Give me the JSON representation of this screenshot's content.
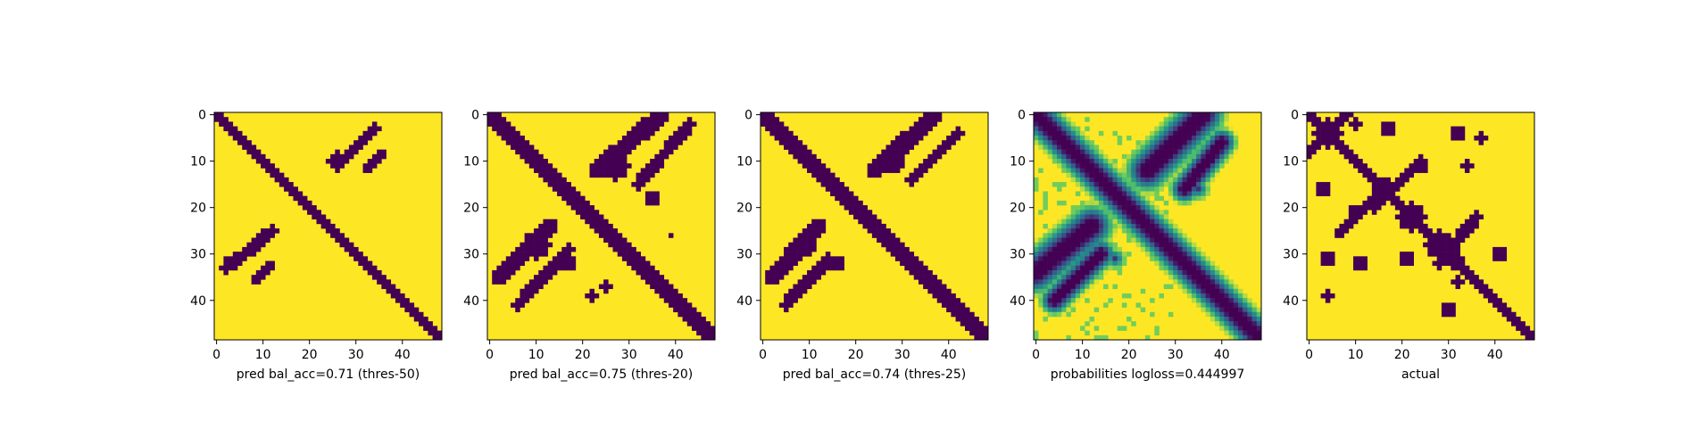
{
  "colors": {
    "background_yellow": "#fde725",
    "foreground_purple": "#440154",
    "viridis_scale": [
      "#440154",
      "#3b528b",
      "#21918c",
      "#5ec962",
      "#fde725"
    ]
  },
  "chart_data": [
    {
      "type": "heatmap",
      "xlabel": "pred bal_acc=0.71 (thres-50)",
      "ylabel": "",
      "xlim": [
        0,
        48
      ],
      "ylim": [
        0,
        48
      ],
      "x_ticks": [
        "0",
        "10",
        "20",
        "30",
        "40"
      ],
      "y_ticks": [
        "0",
        "10",
        "20",
        "30",
        "40"
      ],
      "grid": false,
      "bands": [
        {
          "x0": 0,
          "y0": 0,
          "x1": 48,
          "y1": 48,
          "width": 2
        },
        {
          "x0": 26,
          "y0": 11,
          "x1": 34,
          "y1": 3,
          "width": 2
        },
        {
          "x0": 32,
          "y0": 12,
          "x1": 36,
          "y1": 8,
          "width": 1
        },
        {
          "x0": 9,
          "y0": 27,
          "x1": 12,
          "y1": 25,
          "width": 2
        },
        {
          "x0": 2,
          "y0": 33,
          "x1": 10,
          "y1": 27,
          "width": 2
        },
        {
          "x0": 8,
          "y0": 36,
          "x1": 12,
          "y1": 32,
          "width": 1
        }
      ],
      "blobs": [
        {
          "cx": 26,
          "cy": 10,
          "r": 2
        },
        {
          "cx": 3,
          "cy": 32,
          "r": 1.5
        }
      ]
    },
    {
      "type": "heatmap",
      "xlabel": "pred bal_acc=0.75 (thres-20)",
      "ylabel": "",
      "xlim": [
        0,
        48
      ],
      "ylim": [
        0,
        48
      ],
      "x_ticks": [
        "0",
        "10",
        "20",
        "30",
        "40"
      ],
      "y_ticks": [
        "0",
        "10",
        "20",
        "30",
        "40"
      ],
      "grid": false,
      "bands": [
        {
          "x0": 0,
          "y0": 0,
          "x1": 48,
          "y1": 48,
          "width": 3
        },
        {
          "x0": 23,
          "y0": 12,
          "x1": 37,
          "y1": 0,
          "width": 3
        },
        {
          "x0": 32,
          "y0": 15,
          "x1": 43,
          "y1": 2,
          "width": 2
        },
        {
          "x0": 2,
          "y0": 35,
          "x1": 13,
          "y1": 24,
          "width": 3
        },
        {
          "x0": 6,
          "y0": 41,
          "x1": 17,
          "y1": 29,
          "width": 2
        }
      ],
      "blobs": [
        {
          "cx": 27,
          "cy": 11,
          "r": 3
        },
        {
          "cx": 10,
          "cy": 28,
          "r": 3
        },
        {
          "cx": 17,
          "cy": 32,
          "r": 1.5
        },
        {
          "cx": 35,
          "cy": 18,
          "r": 1.5
        },
        {
          "cx": 25,
          "cy": 37,
          "r": 1
        },
        {
          "cx": 22,
          "cy": 39,
          "r": 1
        },
        {
          "cx": 39,
          "cy": 26,
          "r": 0.7
        }
      ]
    },
    {
      "type": "heatmap",
      "xlabel": "pred bal_acc=0.74 (thres-25)",
      "ylabel": "",
      "xlim": [
        0,
        48
      ],
      "ylim": [
        0,
        48
      ],
      "x_ticks": [
        "0",
        "10",
        "20",
        "30",
        "40"
      ],
      "y_ticks": [
        "0",
        "10",
        "20",
        "30",
        "40"
      ],
      "grid": false,
      "bands": [
        {
          "x0": 0,
          "y0": 0,
          "x1": 48,
          "y1": 48,
          "width": 3
        },
        {
          "x0": 24,
          "y0": 12,
          "x1": 37,
          "y1": 0,
          "width": 3
        },
        {
          "x0": 32,
          "y0": 14,
          "x1": 42,
          "y1": 4,
          "width": 2
        },
        {
          "x0": 2,
          "y0": 35,
          "x1": 12,
          "y1": 24,
          "width": 3
        },
        {
          "x0": 5,
          "y0": 41,
          "x1": 14,
          "y1": 31,
          "width": 2
        }
      ],
      "blobs": [
        {
          "cx": 28,
          "cy": 10,
          "r": 2.5
        },
        {
          "cx": 9,
          "cy": 28,
          "r": 2.5
        },
        {
          "cx": 16,
          "cy": 32,
          "r": 1.5
        }
      ]
    },
    {
      "type": "heatmap",
      "xlabel": "probabilities logloss=0.444997",
      "ylabel": "",
      "xlim": [
        0,
        48
      ],
      "ylim": [
        0,
        48
      ],
      "x_ticks": [
        "0",
        "10",
        "20",
        "30",
        "40"
      ],
      "y_ticks": [
        "0",
        "10",
        "20",
        "30",
        "40"
      ],
      "grid": false,
      "continuous": true,
      "bands": [
        {
          "x0": 0,
          "y0": 0,
          "x1": 48,
          "y1": 48,
          "width": 2.5
        },
        {
          "x0": 24,
          "y0": 12,
          "x1": 36,
          "y1": 0,
          "width": 3
        },
        {
          "x0": 32,
          "y0": 16,
          "x1": 40,
          "y1": 6,
          "width": 2
        },
        {
          "x0": 0,
          "y0": 34,
          "x1": 12,
          "y1": 24,
          "width": 3
        },
        {
          "x0": 4,
          "y0": 40,
          "x1": 14,
          "y1": 30,
          "width": 2
        }
      ],
      "blobs": [
        {
          "cx": 27,
          "cy": 9,
          "r": 4
        },
        {
          "cx": 9,
          "cy": 27,
          "r": 4
        },
        {
          "cx": 17,
          "cy": 31,
          "r": 2
        },
        {
          "cx": 35,
          "cy": 16,
          "r": 2
        }
      ]
    },
    {
      "type": "heatmap",
      "xlabel": "actual",
      "ylabel": "",
      "xlim": [
        0,
        48
      ],
      "ylim": [
        0,
        48
      ],
      "x_ticks": [
        "0",
        "10",
        "20",
        "30",
        "40"
      ],
      "y_ticks": [
        "0",
        "10",
        "20",
        "30",
        "40"
      ],
      "grid": false,
      "bands": [
        {
          "x0": 0,
          "y0": 0,
          "x1": 48,
          "y1": 48,
          "width": 2
        },
        {
          "x0": 0,
          "y0": 8,
          "x1": 8,
          "y1": 0,
          "width": 2
        },
        {
          "x0": 14,
          "y0": 20,
          "x1": 24,
          "y1": 10,
          "width": 2
        },
        {
          "x0": 28,
          "y0": 32,
          "x1": 36,
          "y1": 22,
          "width": 2
        },
        {
          "x0": 6,
          "y0": 26,
          "x1": 14,
          "y1": 18,
          "width": 1
        }
      ],
      "blobs": [
        {
          "cx": 4,
          "cy": 4,
          "r": 3
        },
        {
          "cx": 16,
          "cy": 16,
          "r": 2.5
        },
        {
          "cx": 22,
          "cy": 22,
          "r": 3
        },
        {
          "cx": 28,
          "cy": 28,
          "r": 3
        },
        {
          "cx": 31,
          "cy": 31,
          "r": 2
        },
        {
          "cx": 10,
          "cy": 2,
          "r": 1
        },
        {
          "cx": 17,
          "cy": 3,
          "r": 1.5
        },
        {
          "cx": 32,
          "cy": 4,
          "r": 1.5
        },
        {
          "cx": 37,
          "cy": 5,
          "r": 1
        },
        {
          "cx": 24,
          "cy": 11,
          "r": 1.5
        },
        {
          "cx": 34,
          "cy": 11,
          "r": 1
        },
        {
          "cx": 3,
          "cy": 16,
          "r": 1.5
        },
        {
          "cx": 10,
          "cy": 21,
          "r": 1.5
        },
        {
          "cx": 4,
          "cy": 31,
          "r": 1.5
        },
        {
          "cx": 11,
          "cy": 32,
          "r": 1.5
        },
        {
          "cx": 21,
          "cy": 31,
          "r": 1.5
        },
        {
          "cx": 41,
          "cy": 30,
          "r": 1.5
        },
        {
          "cx": 4,
          "cy": 39,
          "r": 1
        },
        {
          "cx": 30,
          "cy": 42,
          "r": 1.5
        },
        {
          "cx": 32,
          "cy": 36,
          "r": 1
        }
      ]
    }
  ]
}
